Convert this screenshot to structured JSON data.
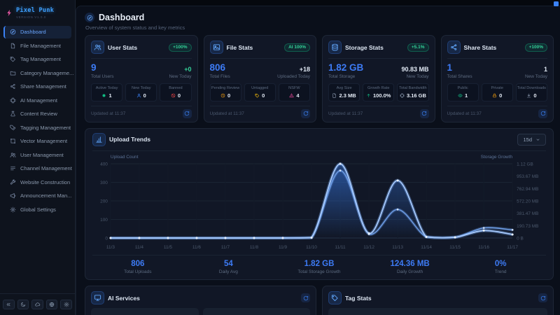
{
  "brand": {
    "name": "Pixel Punk",
    "version": "VERSION V1.0.0",
    "logo_icon": "lightning-icon"
  },
  "sidebar": {
    "items": [
      {
        "label": "Dashboard",
        "icon": "dashboard",
        "active": true
      },
      {
        "label": "File Management",
        "icon": "file",
        "active": false
      },
      {
        "label": "Tag Management",
        "icon": "tag",
        "active": false
      },
      {
        "label": "Category Manageme...",
        "icon": "folder",
        "active": false
      },
      {
        "label": "Share Management",
        "icon": "share",
        "active": false
      },
      {
        "label": "AI Management",
        "icon": "chip",
        "active": false
      },
      {
        "label": "Content Review",
        "icon": "flask",
        "active": false
      },
      {
        "label": "Tagging Management",
        "icon": "tags",
        "active": false
      },
      {
        "label": "Vector Management",
        "icon": "vector",
        "active": false
      },
      {
        "label": "User Management",
        "icon": "users",
        "active": false
      },
      {
        "label": "Channel Management",
        "icon": "channel",
        "active": false
      },
      {
        "label": "Website Construction",
        "icon": "wrench",
        "active": false
      },
      {
        "label": "Announcement Man...",
        "icon": "megaphone",
        "active": false
      },
      {
        "label": "Global Settings",
        "icon": "gear",
        "active": false
      }
    ],
    "footer_icons": [
      "collapse",
      "moon",
      "cloud",
      "globe",
      "gear"
    ]
  },
  "header": {
    "title": "Dashboard",
    "subtitle": "Overview of system status and key metrics",
    "icon": "dashboard"
  },
  "stat_cards": [
    {
      "title": "User Stats",
      "icon": "users",
      "badge": "+100%",
      "primary": {
        "value": "9",
        "label": "Total Users"
      },
      "secondary": {
        "value": "+0",
        "label": "New Today",
        "color": "green"
      },
      "minis": [
        {
          "label": "Active Today",
          "value": "1",
          "icon": "dot",
          "icon_color": "#10b981"
        },
        {
          "label": "New Today",
          "value": "0",
          "icon": "user",
          "icon_color": "#3b82f6"
        },
        {
          "label": "Banned",
          "value": "0",
          "icon": "ban",
          "icon_color": "#ef4444"
        }
      ],
      "updated": "Updated at 11:37"
    },
    {
      "title": "File Stats",
      "icon": "image",
      "badge": "AI 100%",
      "primary": {
        "value": "806",
        "label": "Total Files"
      },
      "secondary": {
        "value": "+18",
        "label": "Uploaded Today",
        "color": "white"
      },
      "minis": [
        {
          "label": "Pending Review",
          "value": "0",
          "icon": "clock",
          "icon_color": "#f59e0b"
        },
        {
          "label": "Untagged",
          "value": "0",
          "icon": "tag",
          "icon_color": "#eab308"
        },
        {
          "label": "NSFW",
          "value": "4",
          "icon": "alert",
          "icon_color": "#ec4899"
        }
      ],
      "updated": "Updated at 11:37"
    },
    {
      "title": "Storage Stats",
      "icon": "database",
      "badge": "+5.1%",
      "primary": {
        "value": "1.82 GB",
        "label": "Total Storage"
      },
      "secondary": {
        "value": "90.83 MB",
        "label": "New Today",
        "color": "white"
      },
      "minis": [
        {
          "label": "Avg Size",
          "value": "2.3 MB",
          "icon": "doc",
          "icon_color": "#94a3b8"
        },
        {
          "label": "Growth Rate",
          "value": "100.0%",
          "icon": "arrow-up",
          "icon_color": "#10b981"
        },
        {
          "label": "Total Bandwidth",
          "value": "3.16 GB",
          "icon": "chip",
          "icon_color": "#94a3b8"
        }
      ],
      "updated": "Updated at 11:37"
    },
    {
      "title": "Share Stats",
      "icon": "share",
      "badge": "+100%",
      "primary": {
        "value": "1",
        "label": "Total Shares"
      },
      "secondary": {
        "value": "1",
        "label": "New Today",
        "color": "white"
      },
      "minis": [
        {
          "label": "Public",
          "value": "1",
          "icon": "eye",
          "icon_color": "#10b981"
        },
        {
          "label": "Private",
          "value": "0",
          "icon": "lock",
          "icon_color": "#f59e0b"
        },
        {
          "label": "Total Downloads",
          "value": "0",
          "icon": "download",
          "icon_color": "#94a3b8"
        }
      ],
      "updated": "Updated at 11:37"
    }
  ],
  "trends": {
    "title": "Upload Trends",
    "icon": "bar-chart",
    "range_value": "15d",
    "summary": [
      {
        "value": "806",
        "label": "Total Uploads"
      },
      {
        "value": "54",
        "label": "Daily Avg"
      },
      {
        "value": "1.82 GB",
        "label": "Total Storage Growth"
      },
      {
        "value": "124.36 MB",
        "label": "Daily Growth"
      },
      {
        "value": "0%",
        "label": "Trend"
      }
    ]
  },
  "chart_data": {
    "type": "area",
    "title": "Upload Trends",
    "x": [
      "11/3",
      "11/4",
      "11/5",
      "11/6",
      "11/7",
      "11/8",
      "11/9",
      "11/10",
      "11/11",
      "11/12",
      "11/13",
      "11/14",
      "11/15",
      "11/16",
      "11/17"
    ],
    "series": [
      {
        "name": "Upload Count",
        "axis": "left",
        "values": [
          0,
          0,
          0,
          0,
          0,
          0,
          0,
          2,
          400,
          25,
          310,
          6,
          4,
          40,
          19
        ]
      },
      {
        "name": "Storage Growth (MB)",
        "axis": "right",
        "values": [
          0,
          0,
          0,
          0,
          0,
          0,
          0,
          5,
          1040,
          60,
          440,
          15,
          10,
          155,
          125
        ]
      }
    ],
    "left_axis": {
      "label": "Upload Count",
      "ticks": [
        0,
        100,
        200,
        300,
        400
      ],
      "max": 400
    },
    "right_axis": {
      "label": "Storage Growth",
      "tick_labels": [
        "0 B",
        "190.73 MB",
        "381.47 MB",
        "572.20 MB",
        "762.94 MB",
        "953.67 MB",
        "1.12 GB"
      ],
      "max_mb": 1144.4
    },
    "grid": true,
    "legend_position": "none",
    "accent_color": "#3b82f6",
    "line_colors": [
      "#a8cbff",
      "#6f9fe8"
    ]
  },
  "bottom_cards": [
    {
      "title": "AI Services",
      "icon": "monitor"
    },
    {
      "title": "Tag Stats",
      "icon": "tag"
    }
  ]
}
